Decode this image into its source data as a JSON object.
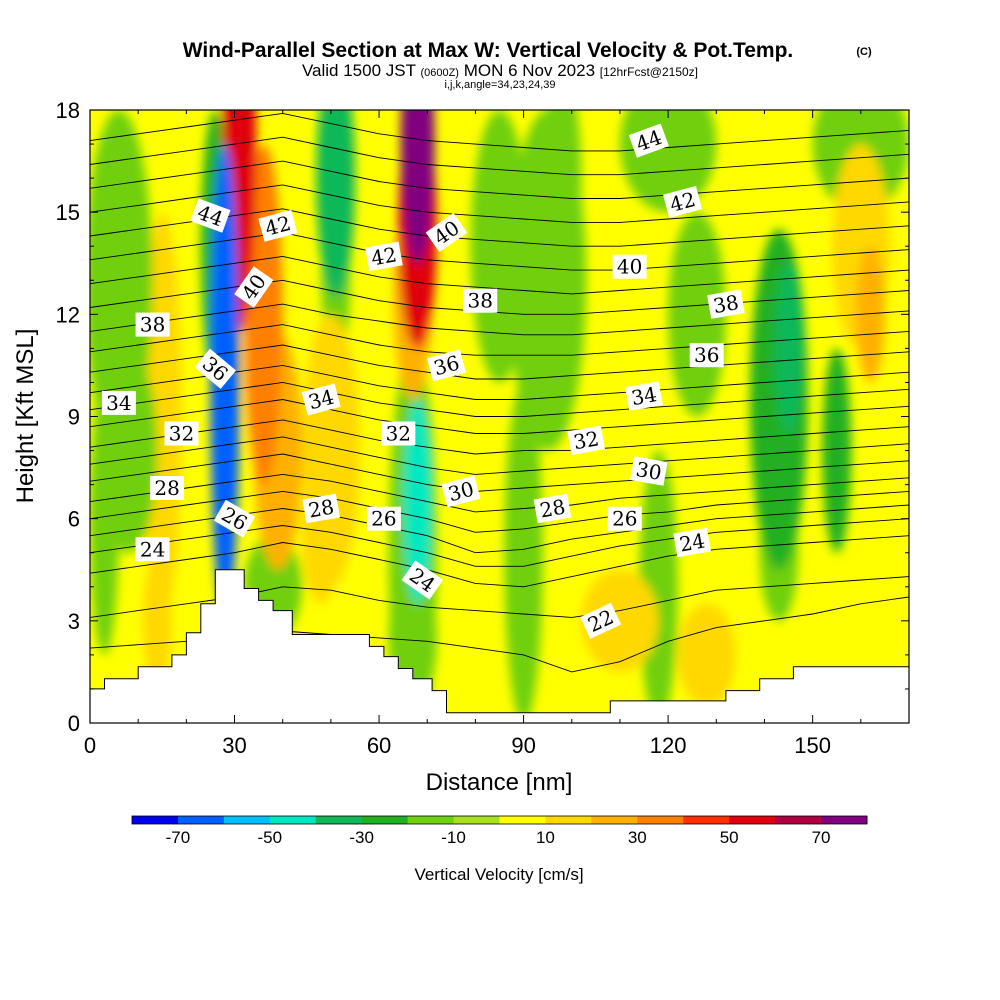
{
  "chart_data": {
    "type": "heatmap",
    "title": "Wind-Parallel Section at Max W: Vertical Velocity & Pot.Temp.",
    "title_mark": "(C)",
    "subtitle_parts": [
      "Valid 1500 JST",
      "(0600Z)",
      "MON 6 Nov 2023",
      "[12hrFcst@2150z]"
    ],
    "subtitle2": "i,j,k,angle=34,23,24,39",
    "xlabel": "Distance [nm]",
    "ylabel": "Height [Kft MSL]",
    "xlim": [
      0,
      170
    ],
    "ylim": [
      0,
      18
    ],
    "xticks": [
      0,
      30,
      60,
      90,
      120,
      150
    ],
    "yticks": [
      0,
      3,
      6,
      9,
      12,
      15,
      18
    ],
    "colorbar": {
      "label": "Vertical Velocity [cm/s]",
      "bounds": [
        -80,
        -70,
        -60,
        -50,
        -40,
        -30,
        -20,
        -10,
        0,
        10,
        20,
        30,
        40,
        50,
        60,
        70,
        80
      ],
      "tick_labels": [
        -70,
        -50,
        -30,
        -10,
        10,
        30,
        50,
        70
      ],
      "colors": [
        "#0000f0",
        "#0060ff",
        "#00c0ff",
        "#00e8c0",
        "#10b858",
        "#20b020",
        "#70d010",
        "#a8e020",
        "#ffff00",
        "#ffd800",
        "#ffb000",
        "#ff8000",
        "#ff3000",
        "#e00010",
        "#b00040",
        "#800080"
      ]
    },
    "w_features": [
      {
        "x": 31,
        "y": 17,
        "rx": 3.5,
        "ry": 5.5,
        "w": 55
      },
      {
        "x": 36,
        "y": 12,
        "rx": 4,
        "ry": 5,
        "w": 35
      },
      {
        "x": 39,
        "y": 8,
        "rx": 5,
        "ry": 3.5,
        "w": 20
      },
      {
        "x": 28,
        "y": 10,
        "rx": 3,
        "ry": 7,
        "w": -65
      },
      {
        "x": 26,
        "y": 14,
        "rx": 3,
        "ry": 4,
        "w": -30
      },
      {
        "x": 51,
        "y": 16,
        "rx": 4,
        "ry": 3.5,
        "w": -35
      },
      {
        "x": 51,
        "y": 13,
        "rx": 3,
        "ry": 2.5,
        "w": -15
      },
      {
        "x": 68,
        "y": 17,
        "rx": 3.5,
        "ry": 3.5,
        "w": 80
      },
      {
        "x": 68,
        "y": 14.5,
        "rx": 4,
        "ry": 3.5,
        "w": 50
      },
      {
        "x": 67,
        "y": 12.5,
        "rx": 4,
        "ry": 3,
        "w": 25
      },
      {
        "x": 68,
        "y": 6.5,
        "rx": 3,
        "ry": 3,
        "w": -50
      },
      {
        "x": 67,
        "y": 5,
        "rx": 5,
        "ry": 6,
        "w": -20
      },
      {
        "x": 67,
        "y": 2.5,
        "rx": 5,
        "ry": 2,
        "w": -20
      },
      {
        "x": 50,
        "y": 8,
        "rx": 6,
        "ry": 4,
        "w": 18
      },
      {
        "x": 48,
        "y": 5.5,
        "rx": 4,
        "ry": 2,
        "w": 18
      },
      {
        "x": 15,
        "y": 9,
        "rx": 4,
        "ry": 6,
        "w": 12
      },
      {
        "x": 14,
        "y": 3,
        "rx": 3,
        "ry": 2,
        "w": 12
      },
      {
        "x": 6,
        "y": 13,
        "rx": 7,
        "ry": 5,
        "w": -12
      },
      {
        "x": 8,
        "y": 8,
        "rx": 6,
        "ry": 3,
        "w": -15
      },
      {
        "x": 3,
        "y": 6,
        "rx": 3,
        "ry": 4,
        "w": -15
      },
      {
        "x": 38,
        "y": 4,
        "rx": 6,
        "ry": 1.5,
        "w": -15
      },
      {
        "x": 85,
        "y": 14,
        "rx": 6,
        "ry": 4,
        "w": -15
      },
      {
        "x": 95,
        "y": 13,
        "rx": 8,
        "ry": 5,
        "w": -12
      },
      {
        "x": 98,
        "y": 16,
        "rx": 4,
        "ry": 3,
        "w": -20
      },
      {
        "x": 90,
        "y": 5,
        "rx": 4,
        "ry": 5,
        "w": -12
      },
      {
        "x": 120,
        "y": 17,
        "rx": 10,
        "ry": 2,
        "w": -12
      },
      {
        "x": 126,
        "y": 12,
        "rx": 6,
        "ry": 3,
        "w": -12
      },
      {
        "x": 118,
        "y": 4,
        "rx": 4,
        "ry": 4,
        "w": -12
      },
      {
        "x": 143,
        "y": 9.5,
        "rx": 6,
        "ry": 5,
        "w": -22
      },
      {
        "x": 145,
        "y": 11,
        "rx": 3,
        "ry": 2.5,
        "w": -35
      },
      {
        "x": 143,
        "y": 5,
        "rx": 4,
        "ry": 2,
        "w": -15
      },
      {
        "x": 155,
        "y": 8,
        "rx": 3,
        "ry": 3,
        "w": -25
      },
      {
        "x": 160,
        "y": 17,
        "rx": 10,
        "ry": 2,
        "w": -12
      },
      {
        "x": 160,
        "y": 14,
        "rx": 6,
        "ry": 3,
        "w": 15
      },
      {
        "x": 162,
        "y": 12,
        "rx": 3,
        "ry": 2,
        "w": 22
      },
      {
        "x": 110,
        "y": 3,
        "rx": 8,
        "ry": 1.5,
        "w": 12
      },
      {
        "x": 128,
        "y": 2,
        "rx": 6,
        "ry": 1.5,
        "w": 15
      }
    ],
    "terrain": [
      {
        "x": 0,
        "y": 0.0
      },
      {
        "x": 0,
        "y": 1.0
      },
      {
        "x": 3,
        "y": 1.0
      },
      {
        "x": 3,
        "y": 1.3
      },
      {
        "x": 10,
        "y": 1.3
      },
      {
        "x": 10,
        "y": 1.65
      },
      {
        "x": 17,
        "y": 1.65
      },
      {
        "x": 17,
        "y": 2.0
      },
      {
        "x": 20,
        "y": 2.0
      },
      {
        "x": 20,
        "y": 2.65
      },
      {
        "x": 23,
        "y": 2.65
      },
      {
        "x": 23,
        "y": 3.5
      },
      {
        "x": 26,
        "y": 3.5
      },
      {
        "x": 26,
        "y": 4.5
      },
      {
        "x": 32,
        "y": 4.5
      },
      {
        "x": 32,
        "y": 3.95
      },
      {
        "x": 35,
        "y": 3.95
      },
      {
        "x": 35,
        "y": 3.6
      },
      {
        "x": 38,
        "y": 3.6
      },
      {
        "x": 38,
        "y": 3.3
      },
      {
        "x": 42,
        "y": 3.3
      },
      {
        "x": 42,
        "y": 2.6
      },
      {
        "x": 58,
        "y": 2.6
      },
      {
        "x": 58,
        "y": 2.25
      },
      {
        "x": 61,
        "y": 2.25
      },
      {
        "x": 61,
        "y": 1.95
      },
      {
        "x": 64,
        "y": 1.95
      },
      {
        "x": 64,
        "y": 1.6
      },
      {
        "x": 67,
        "y": 1.6
      },
      {
        "x": 67,
        "y": 1.3
      },
      {
        "x": 71,
        "y": 1.3
      },
      {
        "x": 71,
        "y": 0.95
      },
      {
        "x": 74,
        "y": 0.95
      },
      {
        "x": 74,
        "y": 0.3
      },
      {
        "x": 108,
        "y": 0.3
      },
      {
        "x": 108,
        "y": 0.65
      },
      {
        "x": 115,
        "y": 0.65
      },
      {
        "x": 115,
        "y": 0.65
      },
      {
        "x": 132,
        "y": 0.65
      },
      {
        "x": 132,
        "y": 0.95
      },
      {
        "x": 139,
        "y": 0.95
      },
      {
        "x": 139,
        "y": 1.3
      },
      {
        "x": 146,
        "y": 1.3
      },
      {
        "x": 146,
        "y": 1.65
      },
      {
        "x": 170,
        "y": 1.65
      },
      {
        "x": 170,
        "y": 0.0
      }
    ],
    "isentropes": [
      {
        "level": 22,
        "y": [
          2.2,
          2.3,
          2.4,
          2.5,
          2.7,
          2.6,
          2.5,
          2.4,
          2.2,
          2.0,
          1.5,
          1.8,
          2.4,
          2.8,
          3.0,
          3.2,
          3.5,
          3.7
        ]
      },
      {
        "level": 23,
        "y": [
          3.1,
          3.3,
          3.5,
          3.7,
          4.0,
          3.9,
          3.6,
          3.4,
          3.3,
          3.2,
          3.1,
          3.3,
          3.6,
          3.9,
          4.0,
          4.1,
          4.2,
          4.3
        ]
      },
      {
        "level": 24,
        "y": [
          4.4,
          4.6,
          4.8,
          5.0,
          5.3,
          5.1,
          4.8,
          4.5,
          4.1,
          4.0,
          4.3,
          4.6,
          4.9,
          5.1,
          5.2,
          5.3,
          5.4,
          5.5
        ]
      },
      {
        "level": 25,
        "y": [
          5.0,
          5.2,
          5.4,
          5.6,
          5.8,
          5.6,
          5.3,
          5.0,
          4.6,
          4.6,
          4.9,
          5.2,
          5.4,
          5.6,
          5.7,
          5.8,
          5.9,
          6.0
        ]
      },
      {
        "level": 26,
        "y": [
          5.5,
          5.7,
          5.9,
          6.1,
          6.3,
          6.1,
          5.8,
          5.5,
          5.0,
          5.1,
          5.4,
          5.6,
          5.8,
          6.0,
          6.1,
          6.2,
          6.3,
          6.4
        ]
      },
      {
        "level": 27,
        "y": [
          6.0,
          6.2,
          6.4,
          6.6,
          6.8,
          6.6,
          6.3,
          6.0,
          5.6,
          5.7,
          5.9,
          6.1,
          6.2,
          6.4,
          6.5,
          6.6,
          6.7,
          6.8
        ]
      },
      {
        "level": 28,
        "y": [
          6.5,
          6.7,
          6.9,
          7.1,
          7.3,
          7.1,
          6.8,
          6.5,
          6.2,
          6.3,
          6.4,
          6.6,
          6.7,
          6.8,
          6.9,
          7.0,
          7.1,
          7.2
        ]
      },
      {
        "level": 29,
        "y": [
          7.1,
          7.3,
          7.5,
          7.7,
          7.9,
          7.6,
          7.3,
          7.0,
          6.8,
          6.9,
          7.0,
          7.1,
          7.2,
          7.3,
          7.4,
          7.5,
          7.6,
          7.7
        ]
      },
      {
        "level": 30,
        "y": [
          7.6,
          7.8,
          8.0,
          8.2,
          8.4,
          8.1,
          7.8,
          7.5,
          7.3,
          7.4,
          7.5,
          7.6,
          7.7,
          7.8,
          7.9,
          8.0,
          8.1,
          8.2
        ]
      },
      {
        "level": 31,
        "y": [
          8.1,
          8.3,
          8.5,
          8.7,
          8.9,
          8.6,
          8.3,
          8.1,
          7.9,
          8.0,
          8.0,
          8.1,
          8.2,
          8.3,
          8.4,
          8.5,
          8.6,
          8.7
        ]
      },
      {
        "level": 32,
        "y": [
          8.7,
          8.9,
          9.1,
          9.3,
          9.5,
          9.2,
          8.9,
          8.7,
          8.5,
          8.5,
          8.6,
          8.7,
          8.8,
          8.9,
          9.0,
          9.1,
          9.2,
          9.3
        ]
      },
      {
        "level": 33,
        "y": [
          9.2,
          9.4,
          9.6,
          9.8,
          10.0,
          9.7,
          9.4,
          9.2,
          9.0,
          9.0,
          9.1,
          9.2,
          9.3,
          9.4,
          9.5,
          9.6,
          9.7,
          9.8
        ]
      },
      {
        "level": 34,
        "y": [
          9.7,
          9.9,
          10.1,
          10.3,
          10.5,
          10.2,
          9.9,
          9.7,
          9.5,
          9.5,
          9.6,
          9.7,
          9.8,
          9.9,
          10.0,
          10.1,
          10.2,
          10.3
        ]
      },
      {
        "level": 35,
        "y": [
          10.3,
          10.5,
          10.7,
          10.9,
          11.1,
          10.8,
          10.5,
          10.3,
          10.1,
          10.1,
          10.2,
          10.3,
          10.4,
          10.5,
          10.6,
          10.7,
          10.8,
          10.9
        ]
      },
      {
        "level": 36,
        "y": [
          10.9,
          11.1,
          11.3,
          11.5,
          11.7,
          11.4,
          11.1,
          10.9,
          10.8,
          10.8,
          10.8,
          10.9,
          11.0,
          11.1,
          11.2,
          11.3,
          11.4,
          11.5
        ]
      },
      {
        "level": 37,
        "y": [
          11.5,
          11.7,
          11.9,
          12.1,
          12.3,
          12.0,
          11.8,
          11.6,
          11.5,
          11.4,
          11.4,
          11.5,
          11.6,
          11.7,
          11.8,
          11.9,
          12.0,
          12.1
        ]
      },
      {
        "level": 38,
        "y": [
          12.2,
          12.4,
          12.6,
          12.8,
          13.0,
          12.7,
          12.4,
          12.2,
          12.1,
          12.0,
          12.0,
          12.1,
          12.2,
          12.3,
          12.4,
          12.5,
          12.6,
          12.7
        ]
      },
      {
        "level": 39,
        "y": [
          12.9,
          13.1,
          13.3,
          13.5,
          13.7,
          13.4,
          13.1,
          12.9,
          12.8,
          12.7,
          12.6,
          12.7,
          12.8,
          12.9,
          13.0,
          13.1,
          13.2,
          13.3
        ]
      },
      {
        "level": 40,
        "y": [
          13.6,
          13.8,
          14.0,
          14.2,
          14.4,
          14.1,
          13.8,
          13.6,
          13.5,
          13.4,
          13.3,
          13.3,
          13.4,
          13.5,
          13.6,
          13.7,
          13.8,
          13.9
        ]
      },
      {
        "level": 41,
        "y": [
          14.3,
          14.5,
          14.7,
          14.9,
          15.1,
          14.8,
          14.5,
          14.3,
          14.2,
          14.1,
          14.0,
          14.0,
          14.1,
          14.2,
          14.3,
          14.4,
          14.5,
          14.6
        ]
      },
      {
        "level": 42,
        "y": [
          15.0,
          15.2,
          15.4,
          15.6,
          15.8,
          15.5,
          15.2,
          15.0,
          14.9,
          14.8,
          14.7,
          14.7,
          14.8,
          14.9,
          15.0,
          15.1,
          15.2,
          15.3
        ]
      },
      {
        "level": 43,
        "y": [
          15.7,
          15.9,
          16.1,
          16.3,
          16.5,
          16.2,
          15.9,
          15.7,
          15.6,
          15.5,
          15.4,
          15.4,
          15.5,
          15.6,
          15.7,
          15.8,
          15.9,
          16.0
        ]
      },
      {
        "level": 44,
        "y": [
          16.4,
          16.6,
          16.8,
          17.0,
          17.2,
          16.9,
          16.6,
          16.4,
          16.3,
          16.2,
          16.1,
          16.1,
          16.2,
          16.3,
          16.4,
          16.5,
          16.6,
          16.7
        ]
      },
      {
        "level": 45,
        "y": [
          17.1,
          17.3,
          17.5,
          17.7,
          17.9,
          17.6,
          17.3,
          17.1,
          17.0,
          16.9,
          16.8,
          16.8,
          16.9,
          17.0,
          17.1,
          17.2,
          17.3,
          17.4
        ]
      }
    ],
    "contour_labels": [
      {
        "text": "44",
        "x": 25,
        "y": 14.9,
        "angle": 20
      },
      {
        "text": "42",
        "x": 39,
        "y": 14.6,
        "angle": -15
      },
      {
        "text": "40",
        "x": 34,
        "y": 12.8,
        "angle": -55
      },
      {
        "text": "38",
        "x": 13,
        "y": 11.7,
        "angle": 0
      },
      {
        "text": "36",
        "x": 26,
        "y": 10.4,
        "angle": 40
      },
      {
        "text": "34",
        "x": 6,
        "y": 9.4,
        "angle": 0
      },
      {
        "text": "32",
        "x": 19,
        "y": 8.5,
        "angle": 0
      },
      {
        "text": "28",
        "x": 16,
        "y": 6.9,
        "angle": 0
      },
      {
        "text": "26",
        "x": 30,
        "y": 6.0,
        "angle": 30
      },
      {
        "text": "24",
        "x": 13,
        "y": 5.1,
        "angle": 0
      },
      {
        "text": "34",
        "x": 48,
        "y": 9.5,
        "angle": -15
      },
      {
        "text": "28",
        "x": 48,
        "y": 6.3,
        "angle": -10
      },
      {
        "text": "26",
        "x": 61,
        "y": 6.0,
        "angle": 0
      },
      {
        "text": "32",
        "x": 64,
        "y": 8.5,
        "angle": 0
      },
      {
        "text": "42",
        "x": 61,
        "y": 13.7,
        "angle": -10
      },
      {
        "text": "40",
        "x": 74,
        "y": 14.4,
        "angle": -35
      },
      {
        "text": "38",
        "x": 81,
        "y": 12.4,
        "angle": 0
      },
      {
        "text": "36",
        "x": 74,
        "y": 10.5,
        "angle": -15
      },
      {
        "text": "30",
        "x": 77,
        "y": 6.8,
        "angle": -15
      },
      {
        "text": "24",
        "x": 69,
        "y": 4.2,
        "angle": 35
      },
      {
        "text": "28",
        "x": 96,
        "y": 6.3,
        "angle": -10
      },
      {
        "text": "32",
        "x": 103,
        "y": 8.3,
        "angle": -10
      },
      {
        "text": "26",
        "x": 111,
        "y": 6.0,
        "angle": 0
      },
      {
        "text": "22",
        "x": 106,
        "y": 3.0,
        "angle": -25
      },
      {
        "text": "44",
        "x": 116,
        "y": 17.1,
        "angle": -20
      },
      {
        "text": "42",
        "x": 123,
        "y": 15.3,
        "angle": -15
      },
      {
        "text": "40",
        "x": 112,
        "y": 13.4,
        "angle": 0
      },
      {
        "text": "34",
        "x": 115,
        "y": 9.6,
        "angle": -10
      },
      {
        "text": "30",
        "x": 116,
        "y": 7.4,
        "angle": 10
      },
      {
        "text": "24",
        "x": 125,
        "y": 5.3,
        "angle": -10
      },
      {
        "text": "38",
        "x": 132,
        "y": 12.3,
        "angle": -10
      },
      {
        "text": "36",
        "x": 128,
        "y": 10.8,
        "angle": 0
      }
    ]
  }
}
